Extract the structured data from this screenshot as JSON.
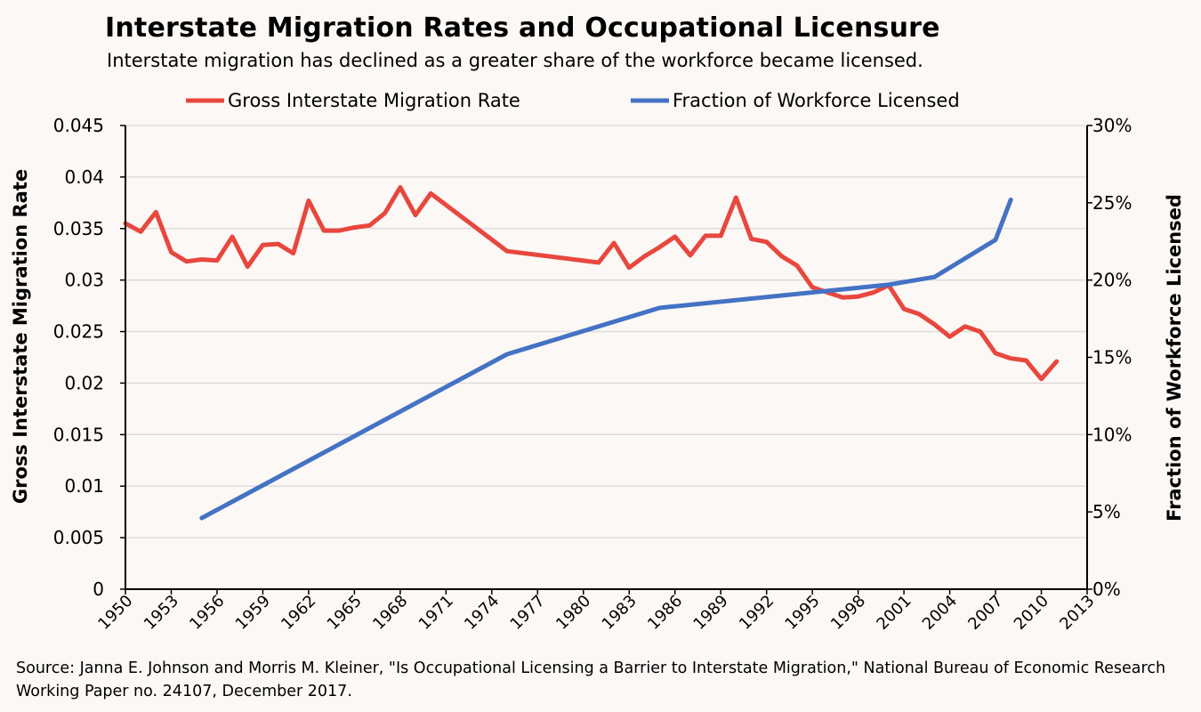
{
  "colors": {
    "background": "#fcf8f5",
    "gridline": "#d9d9d9",
    "axis": "#000000",
    "migration_series": "#e8473e",
    "licensed_series": "#4472c4"
  },
  "chart_data": {
    "type": "line",
    "title": "Interstate Migration Rates and Occupational Licensure",
    "subtitle": "Interstate migration has declined as a greater share of the workforce became licensed.",
    "source": "Source: Janna E. Johnson and Morris M. Kleiner, \"Is Occupational Licensing a Barrier to Interstate Migration,\" National Bureau of Economic Research Working Paper no. 24107, December 2017.",
    "xlabel": "",
    "x_range": [
      1950,
      2013
    ],
    "x_ticks": [
      "1950",
      "1953",
      "1956",
      "1959",
      "1962",
      "1965",
      "1968",
      "1971",
      "1974",
      "1977",
      "1980",
      "1983",
      "1986",
      "1989",
      "1992",
      "1995",
      "1998",
      "2001",
      "2004",
      "2007",
      "2010",
      "2013"
    ],
    "y_left": {
      "label": "Gross Interstate Migration Rate",
      "range": [
        0,
        0.045
      ],
      "ticks": [
        "0",
        "0.005",
        "0.01",
        "0.015",
        "0.02",
        "0.025",
        "0.03",
        "0.035",
        "0.04",
        "0.045"
      ]
    },
    "y_right": {
      "label": "Fraction of Workforce Licensed",
      "range": [
        0,
        0.3
      ],
      "ticks": [
        "0%",
        "5%",
        "10%",
        "15%",
        "20%",
        "25%",
        "30%"
      ]
    },
    "grid": true,
    "legend_position": "top-center",
    "series": [
      {
        "name": "Gross Interstate Migration Rate",
        "axis": "left",
        "x": [
          1950,
          1951,
          1952,
          1953,
          1954,
          1955,
          1956,
          1957,
          1958,
          1959,
          1960,
          1961,
          1962,
          1963,
          1964,
          1965,
          1966,
          1967,
          1968,
          1969,
          1970,
          1975,
          1981,
          1982,
          1983,
          1984,
          1985,
          1986,
          1987,
          1988,
          1989,
          1990,
          1991,
          1992,
          1993,
          1994,
          1995,
          1996,
          1997,
          1998,
          1999,
          2000,
          2001,
          2002,
          2003,
          2004,
          2005,
          2006,
          2007,
          2008,
          2009,
          2010,
          2011
        ],
        "values": [
          0.0355,
          0.0347,
          0.0366,
          0.0327,
          0.0318,
          0.032,
          0.0319,
          0.0342,
          0.0313,
          0.0334,
          0.0335,
          0.0326,
          0.0377,
          0.0348,
          0.0348,
          0.0351,
          0.0353,
          0.0365,
          0.039,
          0.0363,
          0.0384,
          0.0328,
          0.0317,
          0.0336,
          0.0312,
          0.0323,
          0.0332,
          0.0342,
          0.0324,
          0.0343,
          0.0343,
          0.038,
          0.034,
          0.0337,
          0.0323,
          0.0314,
          0.0293,
          0.0288,
          0.0283,
          0.0284,
          0.0288,
          0.0295,
          0.0272,
          0.0267,
          0.0257,
          0.0245,
          0.0255,
          0.025,
          0.0229,
          0.0224,
          0.0222,
          0.0204,
          0.0221
        ]
      },
      {
        "name": "Fraction of Workforce Licensed",
        "axis": "right",
        "x": [
          1955,
          1975,
          1985,
          2000,
          2003,
          2007,
          2008
        ],
        "values": [
          0.046,
          0.152,
          0.182,
          0.197,
          0.202,
          0.226,
          0.252
        ]
      }
    ]
  }
}
